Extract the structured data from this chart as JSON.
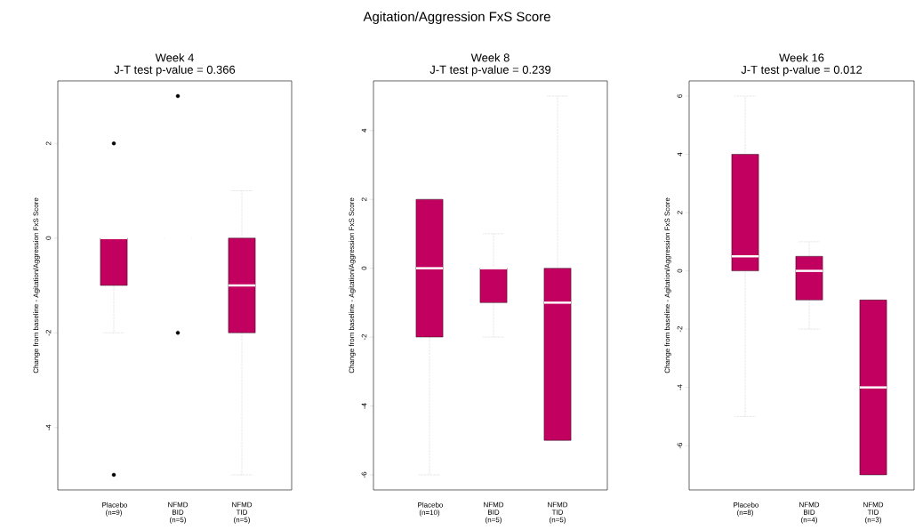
{
  "chart_data": [
    {
      "type": "box",
      "title": "Week 4",
      "subtitle": "J-T test p-value = 0.366",
      "ylabel": "Change from baseline - Agitation/Aggression FxS Score",
      "annotations": [
        "Agitation/Aggression FxS Score"
      ],
      "categories": [
        "Placebo (n=9)",
        "NFMD BID (n=5)",
        "NFMD TID (n=5)"
      ],
      "color": "#c2005f",
      "ylim": [
        -5.32,
        3.32
      ],
      "yticks": [
        -4,
        -2,
        0,
        2
      ],
      "boxes": [
        {
          "low": -2,
          "q1": -1,
          "median": 0,
          "q3": 0,
          "high": 0,
          "outliers": [
            2,
            -5
          ]
        },
        {
          "low": 0,
          "q1": 0,
          "median": 0,
          "q3": 0,
          "high": 0,
          "outliers": [
            3,
            -2
          ]
        },
        {
          "low": -5,
          "q1": -2,
          "median": -1,
          "q3": 0,
          "high": 1
        }
      ]
    },
    {
      "type": "box",
      "title": "Week 8",
      "subtitle": "J-T test p-value = 0.239",
      "ylabel": "Change from baseline - Agitation/Aggression FxS Score",
      "categories": [
        "Placebo (n=10)",
        "NFMD BID (n=5)",
        "NFMD TID (n=5)"
      ],
      "color": "#c2005f",
      "ylim": [
        -6.44,
        5.44
      ],
      "yticks": [
        -6,
        -4,
        -2,
        0,
        2,
        4
      ],
      "boxes": [
        {
          "low": -6,
          "q1": -2,
          "median": 0,
          "q3": 2,
          "high": 2
        },
        {
          "low": -2,
          "q1": -1,
          "median": 0,
          "q3": 0,
          "high": 1
        },
        {
          "low": -5,
          "q1": -5,
          "median": -1,
          "q3": 0,
          "high": 5
        }
      ]
    },
    {
      "type": "box",
      "title": "Week 16",
      "subtitle": "J-T test p-value = 0.012",
      "ylabel": "Change from baseline - Agitation/Aggression FxS Score",
      "categories": [
        "Placebo (n=8)",
        "NFMD BID (n=4)",
        "NFMD TID (n=3)"
      ],
      "color": "#c2005f",
      "ylim": [
        -7.52,
        6.52
      ],
      "yticks": [
        -6,
        -4,
        -2,
        0,
        2,
        4,
        6
      ],
      "boxes": [
        {
          "low": -5,
          "q1": 0,
          "median": 0.5,
          "q3": 4,
          "high": 6
        },
        {
          "low": -2,
          "q1": -1,
          "median": 0,
          "q3": 0.5,
          "high": 1
        },
        {
          "low": -7,
          "q1": -7,
          "median": -4,
          "q3": -1,
          "high": -1
        }
      ]
    }
  ]
}
